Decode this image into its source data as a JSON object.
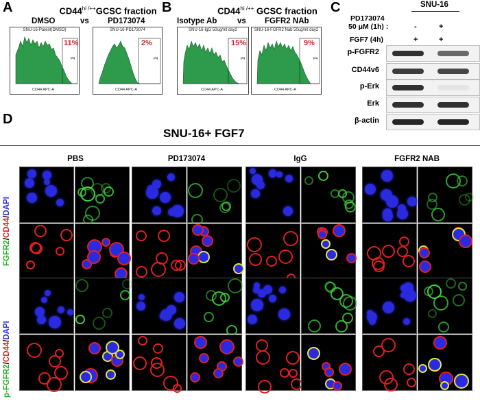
{
  "panels": {
    "A": {
      "label": "A",
      "title_main": "CD44",
      "title_sup": "hi /++",
      "title_rest": "GCSC  fraction",
      "cond1": "DMSO",
      "vs": "vs",
      "cond2": "PD173074",
      "plots": [
        {
          "title": "SNU-16-Parent(DMSO)",
          "pct": "11%",
          "xlabel": "CD44 APC-A",
          "gate": "P4"
        },
        {
          "title": "SNU-16-PD173074",
          "pct": "2%",
          "xlabel": "CD44 APC-A",
          "gate": "P4"
        }
      ]
    },
    "B": {
      "label": "B",
      "title_main": "CD44",
      "title_sup": "hi /++",
      "title_rest": "GCSC fraction",
      "cond1": "Isotype Ab",
      "vs": "vs",
      "cond2": "FGFR2 NAb",
      "plots": [
        {
          "title": "SNU-16-IgG 50ug/ml day2",
          "pct": "15%",
          "xlabel": "CD44 APC-A",
          "gate": "P4"
        },
        {
          "title": "SNU-16-FGFR2 Nab 50ug/ml day2",
          "pct": "9%",
          "xlabel": "CD44 APC-A",
          "gate": "P4"
        }
      ]
    },
    "C": {
      "label": "C",
      "cell_line": "SNU-16",
      "treat1_line1": "PD173074",
      "treat1_line2": "50 μM (1h) :",
      "treat1_vals": [
        "-",
        "+"
      ],
      "treat2": "FGF7 (4h)",
      "treat2_vals": [
        "+",
        "+"
      ],
      "bands": [
        {
          "name": "p-FGFR2",
          "intensity": [
            0.85,
            0.6
          ]
        },
        {
          "name": "CD44v6",
          "intensity": [
            0.8,
            0.75
          ]
        },
        {
          "name": "p-Erk",
          "intensity": [
            0.85,
            0.05
          ]
        },
        {
          "name": "Erk",
          "intensity": [
            0.85,
            0.85
          ]
        },
        {
          "name": "β-actin",
          "intensity": [
            0.9,
            0.9
          ]
        }
      ]
    },
    "D": {
      "label": "D",
      "title": "SNU-16+ FGF7",
      "columns": [
        "PBS",
        "PD173074",
        "IgG",
        "FGFR2 NAB"
      ],
      "row_label_1": {
        "green": "FGFR2",
        "sep1": "/",
        "red": "CD44",
        "sep2": "/",
        "blue": "DAPI"
      },
      "row_label_2": {
        "green": "p-FGFR2",
        "sep1": "/",
        "red": "CD44",
        "sep2": "/",
        "blue": "DAPI"
      }
    }
  },
  "colors": {
    "histogram_fill": "#2e9a4c",
    "percent_text": "#d2232a",
    "green_stain": "#3fdc3f",
    "red_stain": "#e02020",
    "blue_stain": "#2a2ae0"
  }
}
